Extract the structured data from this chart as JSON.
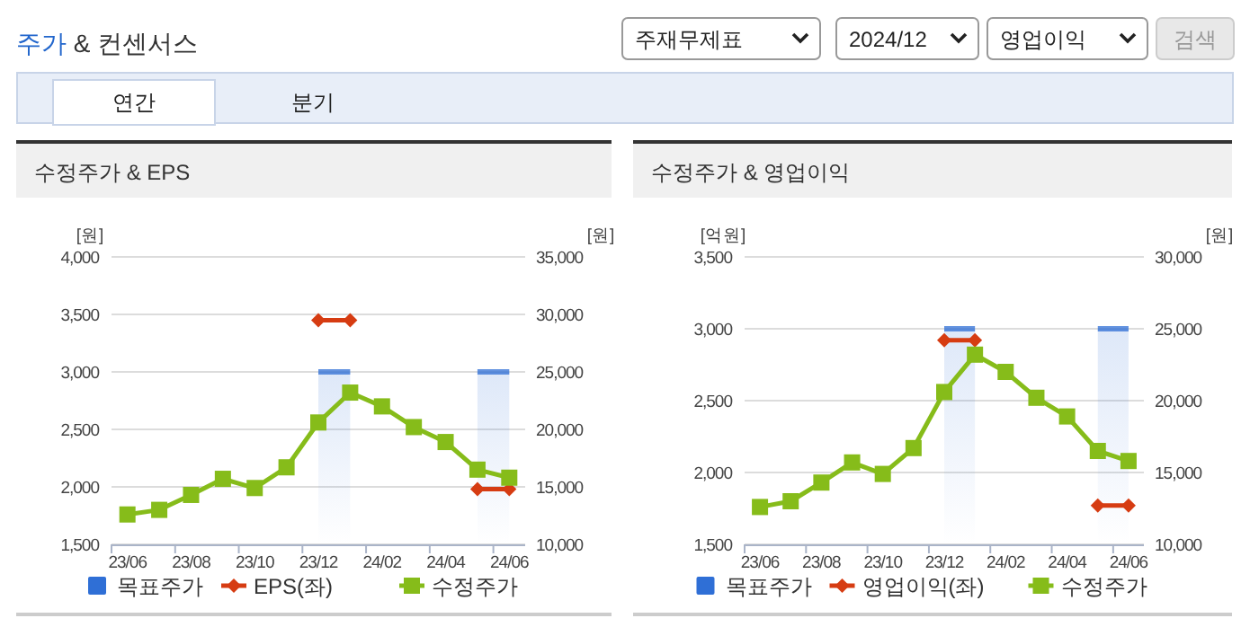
{
  "chart_data": [
    {
      "type": "line",
      "title": "수정주가 & EPS",
      "ylabel": "[원]",
      "y2label": "[원]",
      "annotations": [
        "주가 & 컨센서스",
        "주재무제표",
        "2024/12",
        "영업이익",
        "검색",
        "연간",
        "분기"
      ],
      "categories": [
        "23/06",
        null,
        "23/08",
        null,
        "23/10",
        null,
        "23/12",
        null,
        "24/02",
        null,
        "24/04",
        null,
        "24/06"
      ],
      "ylim": [
        1500,
        4000
      ],
      "yticks": [
        {
          "value": 1500,
          "label": "1,500"
        },
        {
          "value": 2000,
          "label": "2,000"
        },
        {
          "value": 2500,
          "label": "2,500"
        },
        {
          "value": 3000,
          "label": "3,000"
        },
        {
          "value": 3500,
          "label": "3,500"
        },
        {
          "value": 4000,
          "label": "4,000"
        }
      ],
      "y2lim": [
        10000,
        35000
      ],
      "y2ticks": [
        {
          "value": 10000,
          "label": "10,000"
        },
        {
          "value": 15000,
          "label": "15,000"
        },
        {
          "value": 20000,
          "label": "20,000"
        },
        {
          "value": 25000,
          "label": "25,000"
        },
        {
          "value": 30000,
          "label": "30,000"
        },
        {
          "value": 35000,
          "label": "35,000"
        }
      ],
      "grid": "y",
      "legend": "bottom",
      "series": [
        {
          "name": "목표주가",
          "type": "area",
          "axis": "y2",
          "color": "#2f6fd6",
          "values": [
            null,
            null,
            null,
            null,
            null,
            null,
            25000,
            25000,
            null,
            null,
            null,
            25000,
            25000
          ]
        },
        {
          "name": "EPS(좌)",
          "type": "line",
          "axis": "y",
          "marker": "diamond",
          "color": "#d63c12",
          "values": [
            null,
            null,
            null,
            null,
            null,
            null,
            3450,
            3450,
            null,
            null,
            null,
            1980,
            1980
          ]
        },
        {
          "name": "수정주가",
          "type": "line",
          "axis": "y2",
          "marker": "square",
          "color": "#86bc1a",
          "values": [
            12600,
            13000,
            14300,
            15700,
            14900,
            16700,
            20600,
            23200,
            22000,
            20200,
            18900,
            16500,
            15800
          ]
        }
      ]
    },
    {
      "type": "line",
      "title": "수정주가 & 영업이익",
      "ylabel": "[억원]",
      "y2label": "[원]",
      "categories": [
        "23/06",
        null,
        "23/08",
        null,
        "23/10",
        null,
        "23/12",
        null,
        "24/02",
        null,
        "24/04",
        null,
        "24/06"
      ],
      "ylim": [
        1500,
        3500
      ],
      "yticks": [
        {
          "value": 1500,
          "label": "1,500"
        },
        {
          "value": 2000,
          "label": "2,000"
        },
        {
          "value": 2500,
          "label": "2,500"
        },
        {
          "value": 3000,
          "label": "3,000"
        },
        {
          "value": 3500,
          "label": "3,500"
        }
      ],
      "y2lim": [
        10000,
        30000
      ],
      "y2ticks": [
        {
          "value": 10000,
          "label": "10,000"
        },
        {
          "value": 15000,
          "label": "15,000"
        },
        {
          "value": 20000,
          "label": "20,000"
        },
        {
          "value": 25000,
          "label": "25,000"
        },
        {
          "value": 30000,
          "label": "30,000"
        }
      ],
      "grid": "y",
      "legend": "bottom",
      "series": [
        {
          "name": "목표주가",
          "type": "area",
          "axis": "y2",
          "color": "#2f6fd6",
          "values": [
            null,
            null,
            null,
            null,
            null,
            null,
            25000,
            25000,
            null,
            null,
            null,
            25000,
            25000
          ]
        },
        {
          "name": "영업이익(좌)",
          "type": "line",
          "axis": "y",
          "marker": "diamond",
          "color": "#d63c12",
          "values": [
            null,
            null,
            null,
            null,
            null,
            null,
            2920,
            2920,
            null,
            null,
            null,
            1770,
            1770
          ]
        },
        {
          "name": "수정주가",
          "type": "line",
          "axis": "y2",
          "marker": "square",
          "color": "#86bc1a",
          "values": [
            12600,
            13000,
            14300,
            15700,
            14900,
            16700,
            20600,
            23200,
            22000,
            20200,
            18900,
            16500,
            15800
          ]
        }
      ]
    }
  ]
}
